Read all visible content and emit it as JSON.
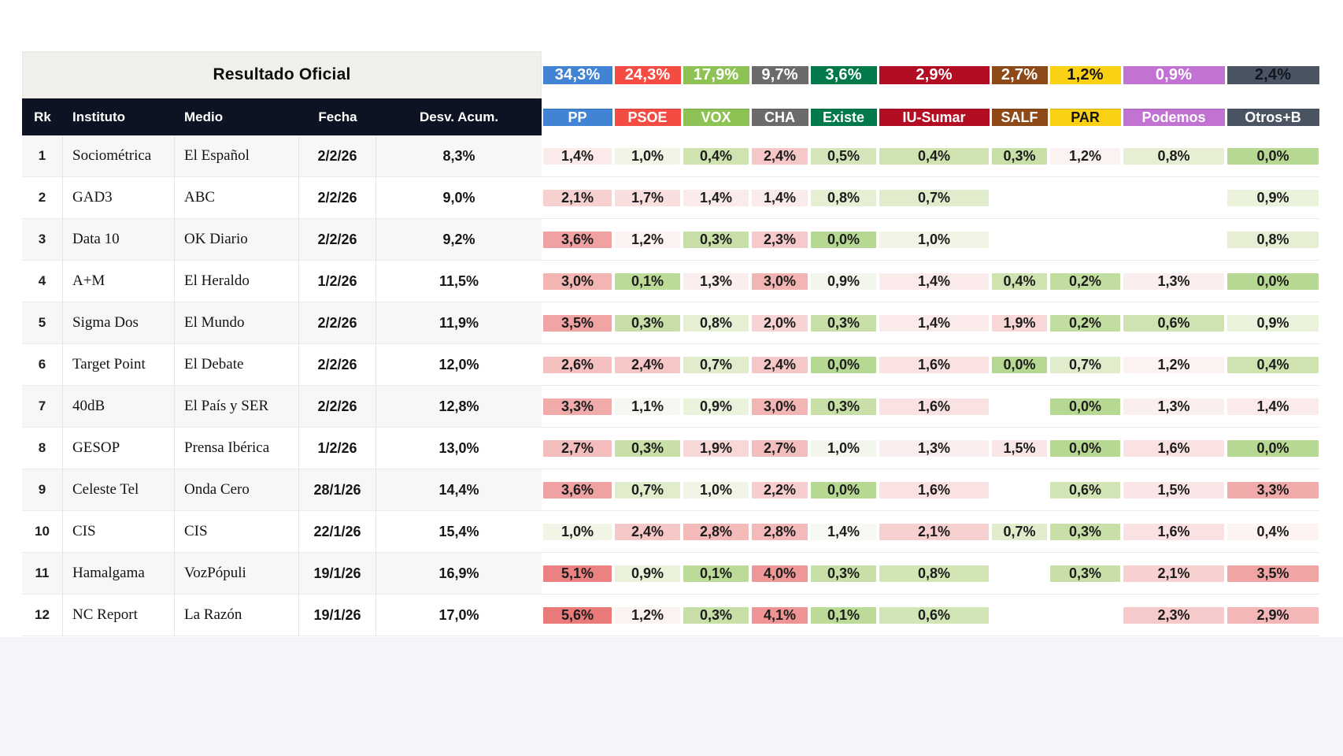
{
  "chart_data": {
    "type": "table",
    "title": "Resultado Oficial",
    "columns": [
      "Rk",
      "Instituto",
      "Medio",
      "Fecha",
      "Desv. Acum."
    ],
    "parties": [
      {
        "name": "PP",
        "result": "34,3%",
        "color": "#4184d6",
        "result_text": "#ffffff",
        "name_text": "#ffffff"
      },
      {
        "name": "PSOE",
        "result": "24,3%",
        "color": "#f44b42",
        "result_text": "#ffffff",
        "name_text": "#ffffff"
      },
      {
        "name": "VOX",
        "result": "17,9%",
        "color": "#8fc255",
        "result_text": "#ffffff",
        "name_text": "#ffffff"
      },
      {
        "name": "CHA",
        "result": "9,7%",
        "color": "#6d6a6a",
        "result_text": "#ffffff",
        "name_text": "#ffffff"
      },
      {
        "name": "Existe",
        "result": "3,6%",
        "color": "#01794b",
        "result_text": "#ffffff",
        "name_text": "#ffffff"
      },
      {
        "name": "IU-Sumar",
        "result": "2,9%",
        "color": "#b30d24",
        "result_text": "#ffffff",
        "name_text": "#ffffff"
      },
      {
        "name": "SALF",
        "result": "2,7%",
        "color": "#8d4a18",
        "result_text": "#ffffff",
        "name_text": "#ffffff"
      },
      {
        "name": "PAR",
        "result": "1,2%",
        "color": "#fbd116",
        "result_text": "#141414",
        "name_text": "#141414"
      },
      {
        "name": "Podemos",
        "result": "0,9%",
        "color": "#c172d3",
        "result_text": "#ffffff",
        "name_text": "#ffffff"
      },
      {
        "name": "Otros+B",
        "result": "2,4%",
        "color": "#4a5462",
        "result_text": "#11161f",
        "name_text": "#ffffff"
      }
    ],
    "rows": [
      {
        "rk": "1",
        "instituto": "Sociométrica",
        "medio": "El Español",
        "fecha": "2/2/26",
        "desv": "8,3%",
        "cells": [
          [
            "1,4%",
            "#fbeaea"
          ],
          [
            "1,0%",
            "#f0f5e5"
          ],
          [
            "0,4%",
            "#cee3b0"
          ],
          [
            "2,4%",
            "#f6c7c7"
          ],
          [
            "0,5%",
            "#d4e6b9"
          ],
          [
            "0,4%",
            "#cee3b0"
          ],
          [
            "0,3%",
            "#c8e0a8"
          ],
          [
            "1,2%",
            "#fcf2f1"
          ],
          [
            "0,8%",
            "#e6efd4"
          ],
          [
            "0,0%",
            "#b7d892"
          ]
        ]
      },
      {
        "rk": "2",
        "instituto": "GAD3",
        "medio": "ABC",
        "fecha": "2/2/26",
        "desv": "9,0%",
        "cells": [
          [
            "2,1%",
            "#f7d0d0"
          ],
          [
            "1,7%",
            "#f9dede"
          ],
          [
            "1,4%",
            "#fbeaea"
          ],
          [
            "1,4%",
            "#fbeaea"
          ],
          [
            "0,8%",
            "#e6efd4"
          ],
          [
            "0,7%",
            "#e0eccb"
          ],
          null,
          null,
          null,
          [
            "0,9%",
            "#ebf2dc"
          ]
        ]
      },
      {
        "rk": "3",
        "instituto": "Data 10",
        "medio": "OK Diario",
        "fecha": "2/2/26",
        "desv": "9,2%",
        "cells": [
          [
            "3,6%",
            "#f0a1a1"
          ],
          [
            "1,2%",
            "#fcf2f1"
          ],
          [
            "0,3%",
            "#c8e0a8"
          ],
          [
            "2,3%",
            "#f6caca"
          ],
          [
            "0,0%",
            "#b7d892"
          ],
          [
            "1,0%",
            "#f0f5e5"
          ],
          null,
          null,
          null,
          [
            "0,8%",
            "#e6efd4"
          ]
        ]
      },
      {
        "rk": "4",
        "instituto": "A+M",
        "medio": "El Heraldo",
        "fecha": "1/2/26",
        "desv": "11,5%",
        "cells": [
          [
            "3,0%",
            "#f3b4b4"
          ],
          [
            "0,1%",
            "#bcda98"
          ],
          [
            "1,3%",
            "#fbeeee"
          ],
          [
            "3,0%",
            "#f3b4b4"
          ],
          [
            "0,9%",
            "#f2f6ec"
          ],
          [
            "1,4%",
            "#fbeaea"
          ],
          [
            "0,4%",
            "#cee3b0"
          ],
          [
            "0,2%",
            "#c2dda0"
          ],
          [
            "1,3%",
            "#fbeeee"
          ],
          [
            "0,0%",
            "#b7d892"
          ]
        ]
      },
      {
        "rk": "5",
        "instituto": "Sigma Dos",
        "medio": "El Mundo",
        "fecha": "2/2/26",
        "desv": "11,9%",
        "cells": [
          [
            "3,5%",
            "#f0a4a4"
          ],
          [
            "0,3%",
            "#c8e0a8"
          ],
          [
            "0,8%",
            "#e6efd4"
          ],
          [
            "2,0%",
            "#f8d3d3"
          ],
          [
            "0,3%",
            "#c8e0a8"
          ],
          [
            "1,4%",
            "#fbeaea"
          ],
          [
            "1,9%",
            "#f8d7d7"
          ],
          [
            "0,2%",
            "#c2dda0"
          ],
          [
            "0,6%",
            "#cfe3b2"
          ],
          [
            "0,9%",
            "#ebf2dc"
          ]
        ]
      },
      {
        "rk": "6",
        "instituto": "Target Point",
        "medio": "El Debate",
        "fecha": "2/2/26",
        "desv": "12,0%",
        "cells": [
          [
            "2,6%",
            "#f5c0c0"
          ],
          [
            "2,4%",
            "#f6c7c7"
          ],
          [
            "0,7%",
            "#e0eccb"
          ],
          [
            "2,4%",
            "#f6c7c7"
          ],
          [
            "0,0%",
            "#b7d892"
          ],
          [
            "1,6%",
            "#fae2e2"
          ],
          [
            "0,0%",
            "#b7d892"
          ],
          [
            "0,7%",
            "#e0eccb"
          ],
          [
            "1,2%",
            "#fcf2f1"
          ],
          [
            "0,4%",
            "#cee3b0"
          ]
        ]
      },
      {
        "rk": "7",
        "instituto": "40dB",
        "medio": "El País y SER",
        "fecha": "2/2/26",
        "desv": "12,8%",
        "cells": [
          [
            "3,3%",
            "#f1aaaa"
          ],
          [
            "1,1%",
            "#f5f7f2"
          ],
          [
            "0,9%",
            "#ebf2dc"
          ],
          [
            "3,0%",
            "#f3b4b4"
          ],
          [
            "0,3%",
            "#c8e0a8"
          ],
          [
            "1,6%",
            "#fae2e2"
          ],
          null,
          [
            "0,0%",
            "#b7d892"
          ],
          [
            "1,3%",
            "#fbeeee"
          ],
          [
            "1,4%",
            "#fbeaea"
          ]
        ]
      },
      {
        "rk": "8",
        "instituto": "GESOP",
        "medio": "Prensa Ibérica",
        "fecha": "1/2/26",
        "desv": "13,0%",
        "cells": [
          [
            "2,7%",
            "#f4bdbd"
          ],
          [
            "0,3%",
            "#c8e0a8"
          ],
          [
            "1,9%",
            "#f8d7d7"
          ],
          [
            "2,7%",
            "#f4bdbd"
          ],
          [
            "1,0%",
            "#f2f6ec"
          ],
          [
            "1,3%",
            "#fbeeee"
          ],
          [
            "1,5%",
            "#fae6e6"
          ],
          [
            "0,0%",
            "#b7d892"
          ],
          [
            "1,6%",
            "#fae2e2"
          ],
          [
            "0,0%",
            "#b7d892"
          ]
        ]
      },
      {
        "rk": "9",
        "instituto": "Celeste Tel",
        "medio": "Onda Cero",
        "fecha": "28/1/26",
        "desv": "14,4%",
        "cells": [
          [
            "3,6%",
            "#f0a1a1"
          ],
          [
            "0,7%",
            "#e0eccb"
          ],
          [
            "1,0%",
            "#f0f5e5"
          ],
          [
            "2,2%",
            "#f7cdcd"
          ],
          [
            "0,0%",
            "#b7d892"
          ],
          [
            "1,6%",
            "#fae2e2"
          ],
          null,
          [
            "0,6%",
            "#d2e5b6"
          ],
          [
            "1,5%",
            "#fae6e6"
          ],
          [
            "3,3%",
            "#f1aaaa"
          ]
        ]
      },
      {
        "rk": "10",
        "instituto": "CIS",
        "medio": "CIS",
        "fecha": "22/1/26",
        "desv": "15,4%",
        "cells": [
          [
            "1,0%",
            "#f0f5e5"
          ],
          [
            "2,4%",
            "#f6c7c7"
          ],
          [
            "2,8%",
            "#f4baba"
          ],
          [
            "2,8%",
            "#f4baba"
          ],
          [
            "1,4%",
            "#f6f8f3"
          ],
          [
            "2,1%",
            "#f7d0d0"
          ],
          [
            "0,7%",
            "#e0eccb"
          ],
          [
            "0,3%",
            "#c8e0a8"
          ],
          [
            "1,6%",
            "#fae2e2"
          ],
          [
            "0,4%",
            "#fdf3f2"
          ]
        ]
      },
      {
        "rk": "11",
        "instituto": "Hamalgama",
        "medio": "VozPópuli",
        "fecha": "19/1/26",
        "desv": "16,9%",
        "cells": [
          [
            "5,1%",
            "#eb8181"
          ],
          [
            "0,9%",
            "#ebf2dc"
          ],
          [
            "0,1%",
            "#bcda98"
          ],
          [
            "4,0%",
            "#ee9797"
          ],
          [
            "0,3%",
            "#c8e0a8"
          ],
          [
            "0,8%",
            "#d2e5b5"
          ],
          null,
          [
            "0,3%",
            "#c8e0a8"
          ],
          [
            "2,1%",
            "#f7d0d0"
          ],
          [
            "3,5%",
            "#f0a4a4"
          ]
        ]
      },
      {
        "rk": "12",
        "instituto": "NC Report",
        "medio": "La Razón",
        "fecha": "19/1/26",
        "desv": "17,0%",
        "cells": [
          [
            "5,6%",
            "#ea7a7a"
          ],
          [
            "1,2%",
            "#fcf2f1"
          ],
          [
            "0,3%",
            "#c8e0a8"
          ],
          [
            "4,1%",
            "#ee9494"
          ],
          [
            "0,1%",
            "#bcda98"
          ],
          [
            "0,6%",
            "#d2e5b6"
          ],
          null,
          null,
          [
            "2,3%",
            "#f6caca"
          ],
          [
            "2,9%",
            "#f3b7b7"
          ]
        ]
      }
    ]
  },
  "theme": {
    "header_dark_bg": "#0d1322",
    "banner_bg": "#f0efea",
    "row_alt_bg": "#f6f7f9",
    "bottom_strip_bg": "#f4f5f8",
    "heat_green_max": "#b7d892",
    "heat_red_max": "#ea7a7a"
  }
}
